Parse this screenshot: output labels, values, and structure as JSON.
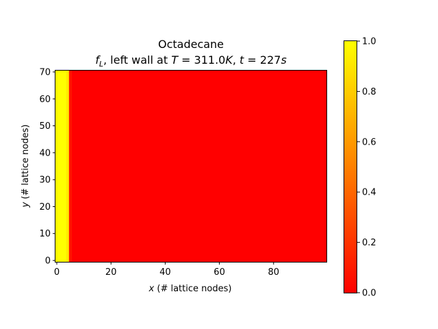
{
  "chart_data": {
    "type": "heatmap",
    "title": "Octadecane",
    "subtitle": {
      "var": "f",
      "var_sub": "L",
      "text1": ", left wall at ",
      "T_sym": "T",
      "eq": " = ",
      "T_val": "311.0",
      "T_unit": "K",
      "sep": ", ",
      "t_sym": "t",
      "t_val": "227",
      "t_unit": "s"
    },
    "xlabel": {
      "sym": "x",
      "rest": " (# lattice nodes)"
    },
    "ylabel": {
      "sym": "y",
      "rest": " (# lattice nodes)"
    },
    "xlim": [
      -0.5,
      99.5
    ],
    "ylim": [
      -0.5,
      70.5
    ],
    "xticks": [
      0,
      20,
      40,
      60,
      80
    ],
    "xticklabels": [
      "0",
      "20",
      "40",
      "60",
      "80"
    ],
    "yticks": [
      0,
      10,
      20,
      30,
      40,
      50,
      60,
      70
    ],
    "yticklabels": [
      "0",
      "10",
      "20",
      "30",
      "40",
      "50",
      "60",
      "70"
    ],
    "field": {
      "description_columns": "liquid fraction per lattice column (uniform in y)",
      "column_values": [
        1.0,
        1.0,
        1.0,
        1.0,
        0.92,
        0.08
      ],
      "background_value": 0.0,
      "ncols": 100,
      "nrows": 71
    },
    "colorbar": {
      "cmap": "autumn",
      "vmin": 0.0,
      "vmax": 1.0,
      "ticks": [
        0.0,
        0.2,
        0.4,
        0.6,
        0.8,
        1.0
      ],
      "ticklabels": [
        "0.0",
        "0.2",
        "0.4",
        "0.6",
        "0.8",
        "1.0"
      ]
    }
  }
}
